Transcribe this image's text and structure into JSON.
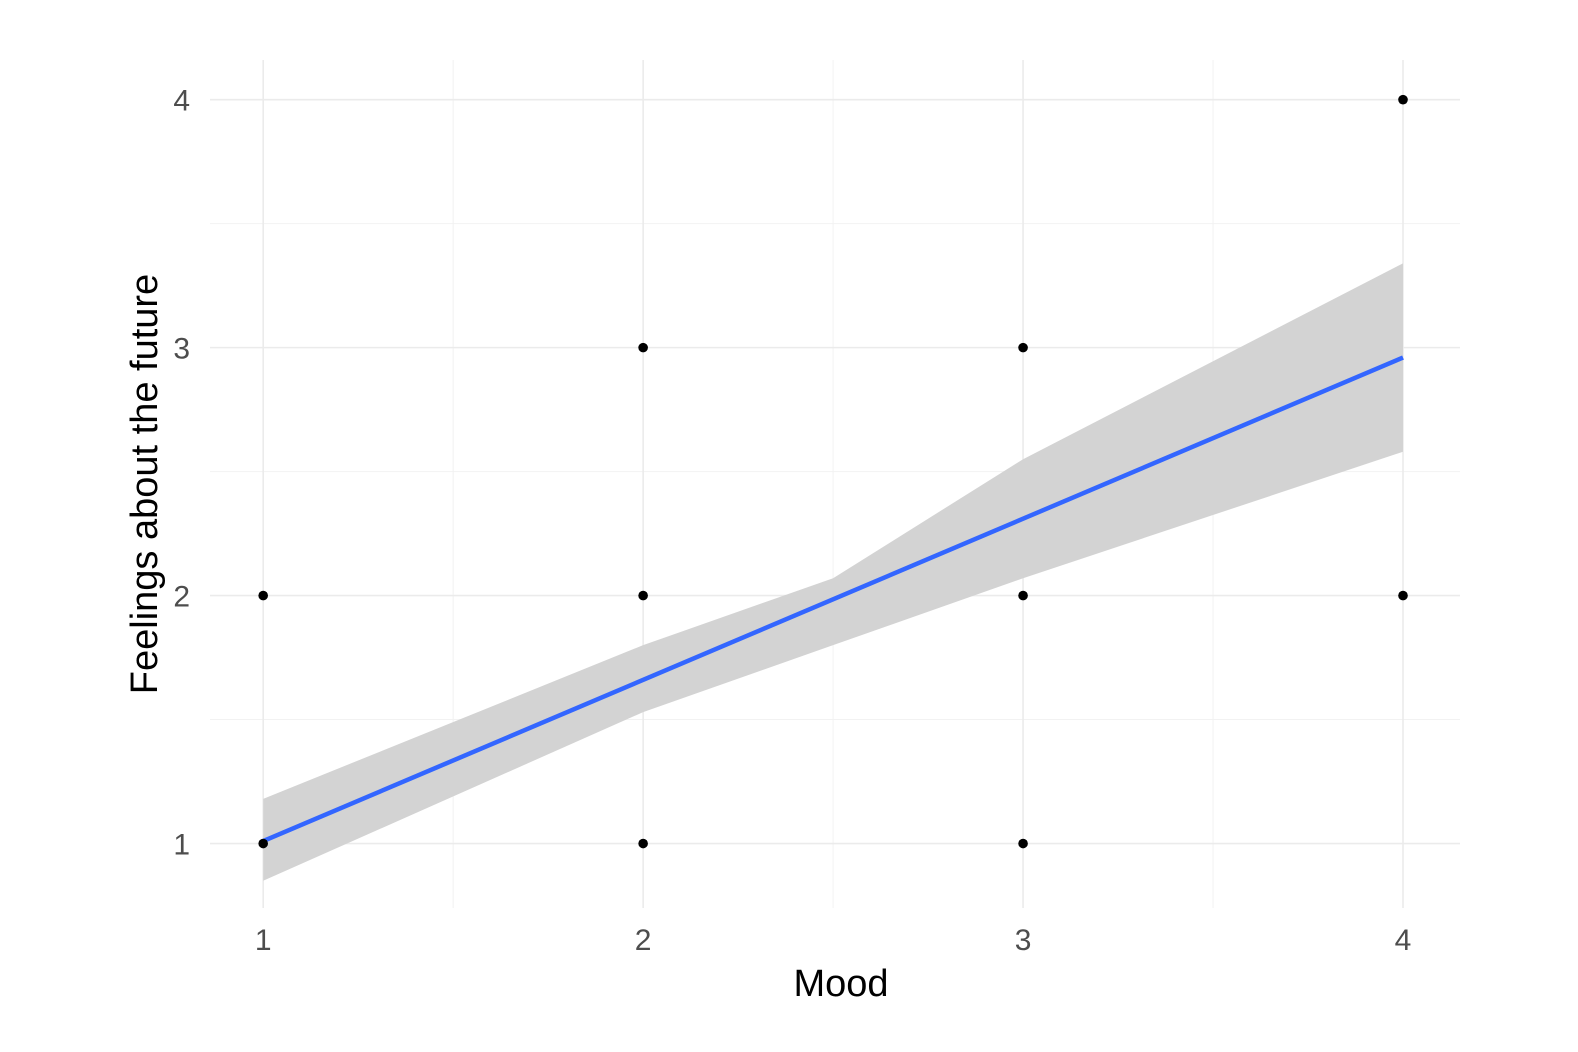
{
  "chart_data": {
    "type": "scatter",
    "xlabel": "Mood",
    "ylabel": "Feelings about the future",
    "xlim": [
      0.86,
      4.15
    ],
    "ylim": [
      0.74,
      4.16
    ],
    "x_ticks": [
      1,
      2,
      3,
      4
    ],
    "y_ticks": [
      1,
      2,
      3,
      4
    ],
    "x_tick_labels": [
      "1",
      "2",
      "3",
      "4"
    ],
    "y_tick_labels": [
      "1",
      "2",
      "3",
      "4"
    ],
    "grid": true,
    "points": [
      {
        "x": 1,
        "y": 1
      },
      {
        "x": 1,
        "y": 2
      },
      {
        "x": 2,
        "y": 1
      },
      {
        "x": 2,
        "y": 2
      },
      {
        "x": 2,
        "y": 3
      },
      {
        "x": 3,
        "y": 1
      },
      {
        "x": 3,
        "y": 2
      },
      {
        "x": 3,
        "y": 3
      },
      {
        "x": 4,
        "y": 2
      },
      {
        "x": 4,
        "y": 4
      }
    ],
    "fit_line": {
      "method": "linear",
      "x": [
        1,
        4
      ],
      "y": [
        1.01,
        2.96
      ],
      "color": "#3366ff"
    },
    "confidence_band": {
      "x": [
        1,
        2,
        2.5,
        3,
        4
      ],
      "lower": [
        0.85,
        1.53,
        1.8,
        2.07,
        2.58
      ],
      "upper": [
        1.18,
        1.8,
        2.07,
        2.55,
        3.34
      ],
      "color": "#d3d3d3"
    },
    "colors": {
      "points": "#000000",
      "grid": "#ebebeb",
      "ticks": "#4d4d4d"
    }
  }
}
